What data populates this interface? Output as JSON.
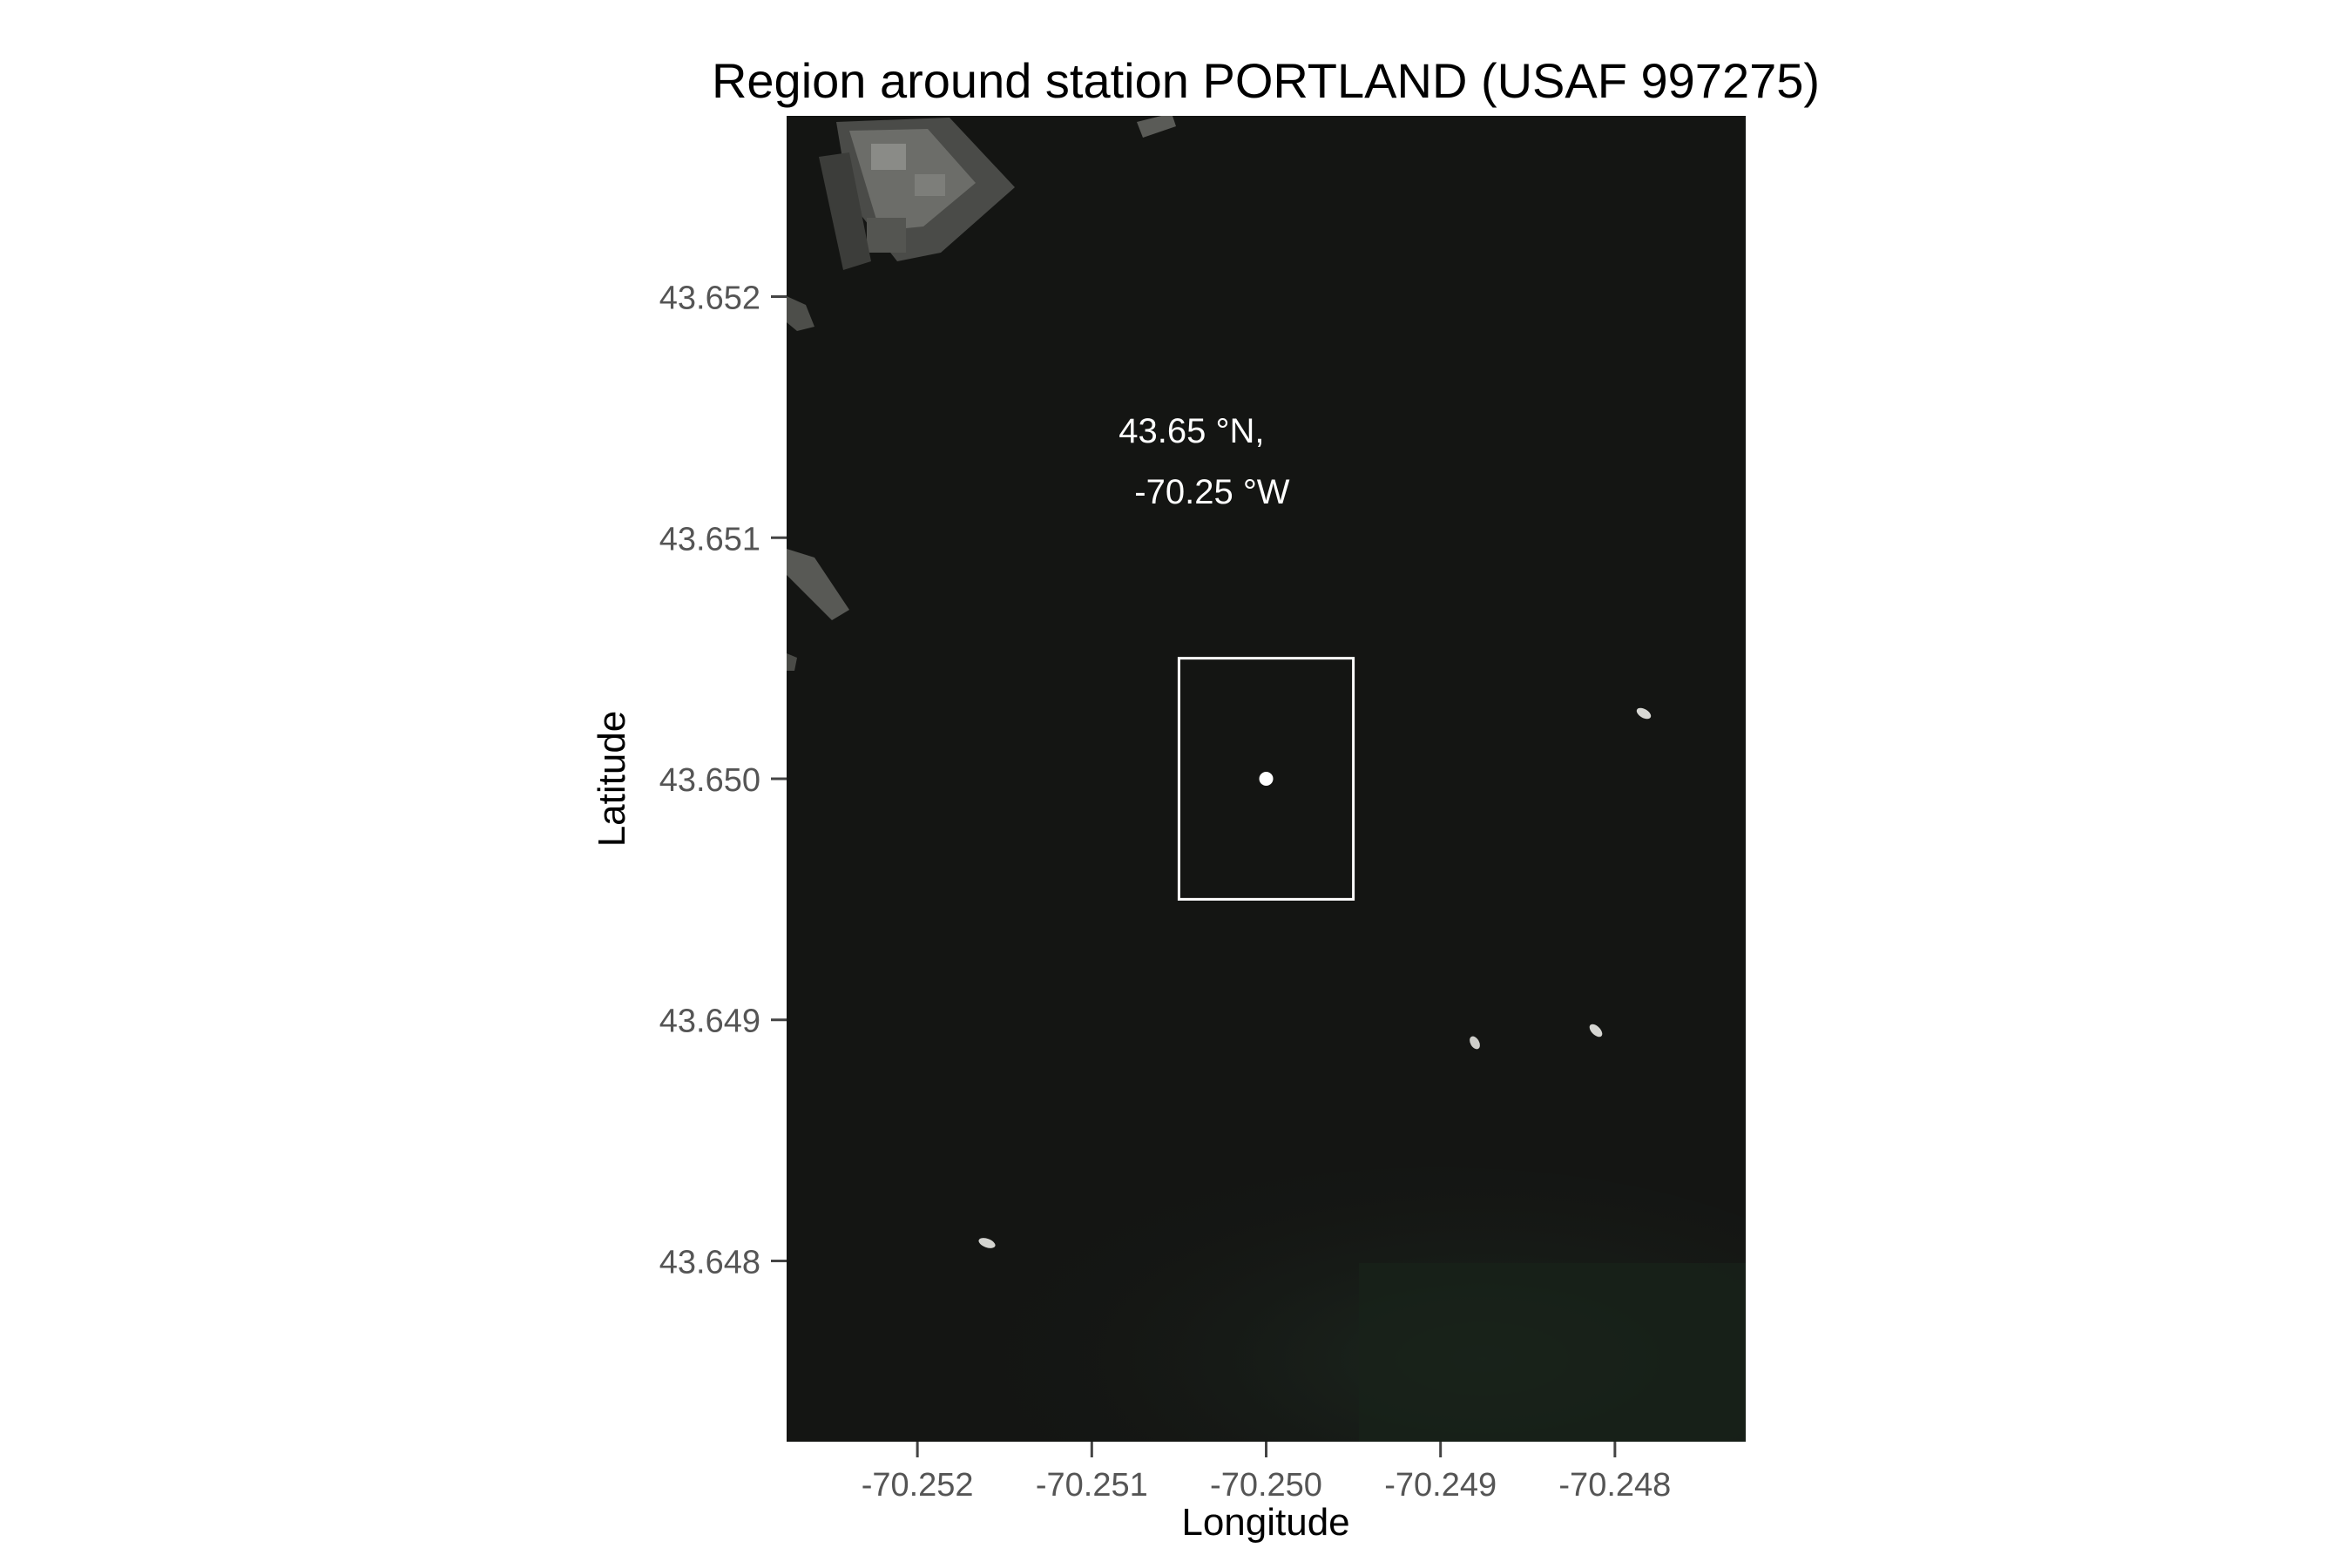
{
  "chart_data": {
    "type": "map",
    "title": "Region around station PORTLAND (USAF 997275)",
    "xlabel": "Longitude",
    "ylabel": "Latitude",
    "xlim": [
      -70.25275,
      -70.24725
    ],
    "ylim": [
      43.64725,
      43.65275
    ],
    "x_ticks": [
      {
        "value": -70.252,
        "label": "-70.252"
      },
      {
        "value": -70.251,
        "label": "-70.251"
      },
      {
        "value": -70.25,
        "label": "-70.250"
      },
      {
        "value": -70.249,
        "label": "-70.249"
      },
      {
        "value": -70.248,
        "label": "-70.248"
      }
    ],
    "y_ticks": [
      {
        "value": 43.648,
        "label": "43.648"
      },
      {
        "value": 43.649,
        "label": "43.649"
      },
      {
        "value": 43.65,
        "label": "43.650"
      },
      {
        "value": 43.651,
        "label": "43.651"
      },
      {
        "value": 43.652,
        "label": "43.652"
      }
    ],
    "station": {
      "lon": -70.25,
      "lat": 43.65
    },
    "station_box": {
      "lon_min": -70.2505,
      "lon_max": -70.2495,
      "lat_min": 43.6495,
      "lat_max": 43.6505
    },
    "coordinate_label": {
      "line1": "43.65 °N,",
      "line2": "-70.25 °W",
      "lon": -70.2504,
      "lat": 43.65115
    },
    "background": "satellite imagery",
    "grid": false,
    "colors": {
      "water": "#141513",
      "marker": "#ffffff",
      "tick_label": "#555555",
      "tick_mark": "#444444"
    }
  }
}
